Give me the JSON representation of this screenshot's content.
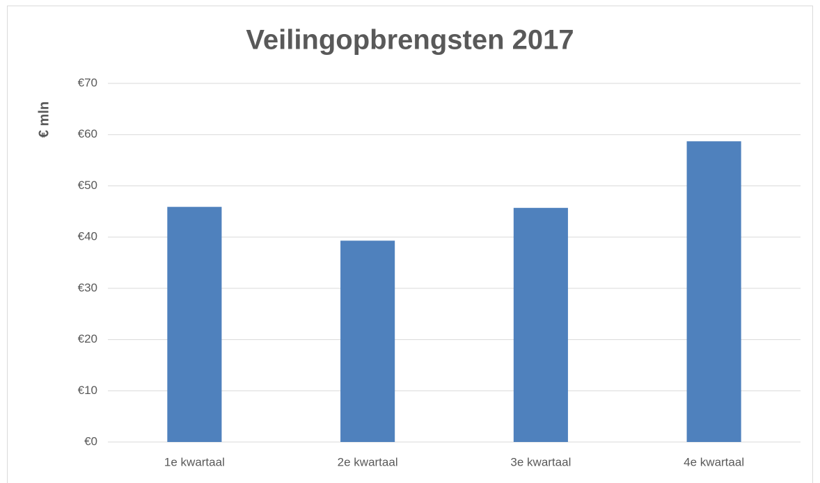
{
  "chart_data": {
    "type": "bar",
    "title": "Veilingopbrengsten 2017",
    "y_label": "€ mln",
    "categories": [
      "1e kwartaal",
      "2e kwartaal",
      "3e kwartaal",
      "4e kwartaal"
    ],
    "values": [
      45.9,
      39.3,
      45.7,
      58.7
    ],
    "color": "#4f81bd",
    "ylim": [
      0,
      70
    ],
    "yticks": [
      {
        "value": 0,
        "label": "€0"
      },
      {
        "value": 10,
        "label": "€10"
      },
      {
        "value": 20,
        "label": "€20"
      },
      {
        "value": 30,
        "label": "€30"
      },
      {
        "value": 40,
        "label": "€40"
      },
      {
        "value": 50,
        "label": "€50"
      },
      {
        "value": 60,
        "label": "€60"
      },
      {
        "value": 70,
        "label": "€70"
      }
    ],
    "grid": true
  }
}
